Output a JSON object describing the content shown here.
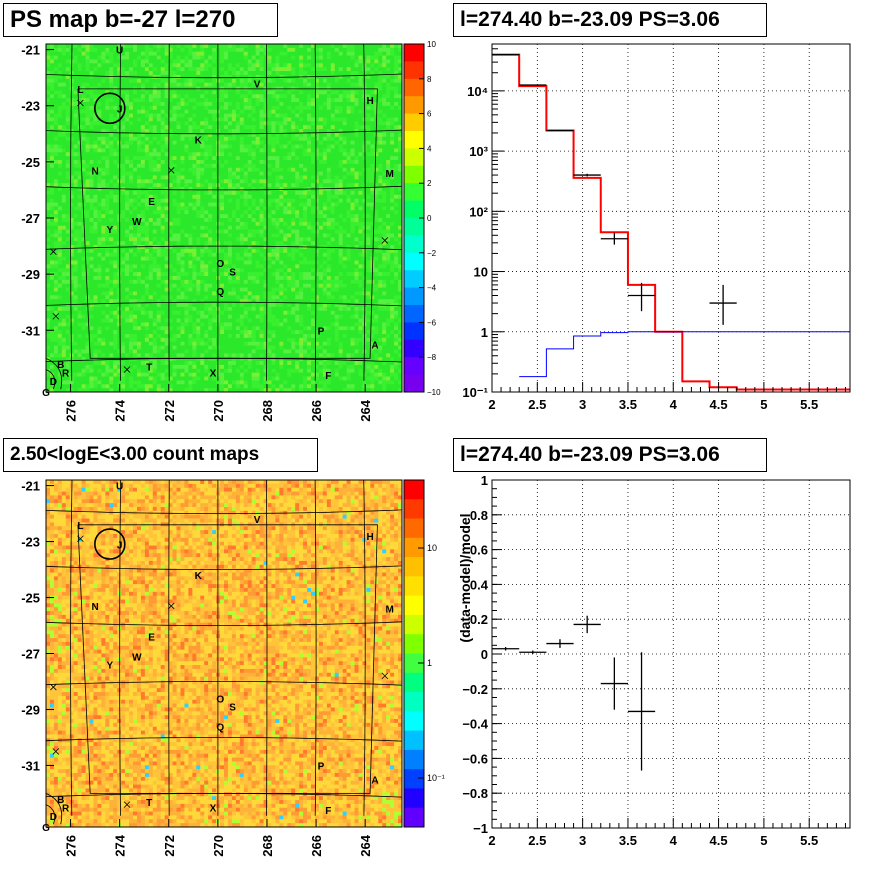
{
  "panels": {
    "tl": {
      "title": "PS map b=-27 l=270"
    },
    "tr": {
      "title": "l=274.40 b=-23.09 PS=3.06"
    },
    "bl": {
      "title": "2.50<logE<3.00 count maps"
    },
    "br": {
      "title": "l=274.40 b=-23.09 PS=3.06"
    }
  },
  "map_labels": [
    {
      "t": "U",
      "l": 274.0,
      "b": -21.0
    },
    {
      "t": "L",
      "l": 275.6,
      "b": -22.4
    },
    {
      "t": "V",
      "l": 268.4,
      "b": -22.2
    },
    {
      "t": "H",
      "l": 263.8,
      "b": -22.8
    },
    {
      "t": "J",
      "l": 274.0,
      "b": -23.1
    },
    {
      "t": "K",
      "l": 270.8,
      "b": -24.2
    },
    {
      "t": "N",
      "l": 275.0,
      "b": -25.3
    },
    {
      "t": "M",
      "l": 263.0,
      "b": -25.4
    },
    {
      "t": "E",
      "l": 272.7,
      "b": -26.4
    },
    {
      "t": "W",
      "l": 273.3,
      "b": -27.1
    },
    {
      "t": "Y",
      "l": 274.4,
      "b": -27.4
    },
    {
      "t": "O",
      "l": 269.9,
      "b": -28.6
    },
    {
      "t": "S",
      "l": 269.4,
      "b": -28.9
    },
    {
      "t": "Q",
      "l": 269.9,
      "b": -29.6
    },
    {
      "t": "P",
      "l": 265.8,
      "b": -31.0
    },
    {
      "t": "A",
      "l": 263.6,
      "b": -31.5
    },
    {
      "t": "T",
      "l": 272.8,
      "b": -32.3
    },
    {
      "t": "X",
      "l": 270.2,
      "b": -32.5
    },
    {
      "t": "F",
      "l": 265.5,
      "b": -32.6
    },
    {
      "t": "R",
      "l": 276.2,
      "b": -32.5
    },
    {
      "t": "B",
      "l": 276.4,
      "b": -32.2
    },
    {
      "t": "D",
      "l": 276.7,
      "b": -32.8
    },
    {
      "t": "G",
      "l": 277.0,
      "b": -33.2
    }
  ],
  "map_crosses": [
    {
      "l": 275.6,
      "b": -22.9
    },
    {
      "l": 271.9,
      "b": -25.3
    },
    {
      "l": 276.7,
      "b": -28.2
    },
    {
      "l": 276.6,
      "b": -30.5
    },
    {
      "l": 273.7,
      "b": -32.4
    },
    {
      "l": 263.2,
      "b": -27.8
    }
  ],
  "chart_data": [
    {
      "type": "heatmap",
      "title": "PS map b=-27 l=270",
      "xlabel": "",
      "ylabel": "",
      "x_ticks": [
        "276",
        "274",
        "272",
        "270",
        "268",
        "266",
        "264"
      ],
      "y_ticks": [
        "-21",
        "-23",
        "-25",
        "-27",
        "-29",
        "-31"
      ],
      "xlim": [
        277.0,
        262.5
      ],
      "ylim": [
        -33.2,
        -20.8
      ],
      "color_scale": {
        "min": -10,
        "max": 10,
        "ticks": [
          "10",
          "8",
          "6",
          "4",
          "2",
          "0",
          "−2",
          "−4",
          "−6",
          "−8",
          "−10"
        ]
      },
      "source": {
        "l": 274.4,
        "b": -23.09
      }
    },
    {
      "type": "line",
      "title": "l=274.40 b=-23.09 PS=3.06",
      "x_ticks": [
        "2",
        "2.5",
        "3",
        "3.5",
        "4",
        "4.5",
        "5",
        "5.5"
      ],
      "y_ticks": [
        "10⁻¹",
        "1",
        "10",
        "10²",
        "10³",
        "10⁴"
      ],
      "xlim": [
        2,
        5.95
      ],
      "ylim": [
        0.1,
        60000
      ],
      "yscale": "log",
      "grid": true,
      "series": [
        {
          "color": "#ff0000",
          "edges": [
            2,
            2.3,
            2.6,
            2.9,
            3.2,
            3.5,
            3.8,
            4.1,
            4.4,
            4.7,
            5.95
          ],
          "values": [
            40000,
            12000,
            2200,
            360,
            45,
            6,
            1,
            0.15,
            0.12,
            0.11
          ]
        },
        {
          "color": "#0000ff",
          "edges": [
            2.3,
            2.6,
            2.9,
            3.2,
            3.5,
            3.8,
            4.1,
            5.95
          ],
          "values": [
            0.18,
            0.52,
            0.85,
            0.97,
            1,
            1,
            1
          ]
        }
      ],
      "points": [
        {
          "x": 2.15,
          "dx": 0.15,
          "y": 40000,
          "lo": 40000,
          "hi": 40000
        },
        {
          "x": 2.45,
          "dx": 0.15,
          "y": 12500,
          "lo": 12500,
          "hi": 12500
        },
        {
          "x": 2.75,
          "dx": 0.15,
          "y": 2200,
          "lo": 2200,
          "hi": 2200
        },
        {
          "x": 3.05,
          "dx": 0.15,
          "y": 400,
          "lo": 380,
          "hi": 420
        },
        {
          "x": 3.35,
          "dx": 0.15,
          "y": 35,
          "lo": 28,
          "hi": 44
        },
        {
          "x": 3.65,
          "dx": 0.15,
          "y": 4,
          "lo": 2.2,
          "hi": 6.5
        },
        {
          "x": 4.55,
          "dx": 0.15,
          "y": 3,
          "lo": 1.3,
          "hi": 6
        }
      ]
    },
    {
      "type": "heatmap",
      "title": "2.50<logE<3.00 count maps",
      "x_ticks": [
        "276",
        "274",
        "272",
        "270",
        "268",
        "266",
        "264"
      ],
      "y_ticks": [
        "-21",
        "-23",
        "-25",
        "-27",
        "-29",
        "-31"
      ],
      "xlim": [
        277.0,
        262.5
      ],
      "ylim": [
        -33.2,
        -20.8
      ],
      "color_scale": {
        "scale": "log",
        "ticks": [
          "10",
          "1",
          "10⁻¹"
        ]
      }
    },
    {
      "type": "scatter",
      "title": "l=274.40 b=-23.09 PS=3.06",
      "ylabel": "(data-model)/model",
      "x_ticks": [
        "2",
        "2.5",
        "3",
        "3.5",
        "4",
        "4.5",
        "5",
        "5.5"
      ],
      "y_ticks": [
        "1",
        "0.8",
        "0.6",
        "0.4",
        "0.2",
        "0",
        "−0.2",
        "−0.4",
        "−0.6",
        "−0.8",
        "−1"
      ],
      "xlim": [
        2,
        5.95
      ],
      "ylim": [
        -1,
        1
      ],
      "grid": true,
      "points": [
        {
          "x": 2.15,
          "dx": 0.15,
          "y": 0.03,
          "err": 0.01
        },
        {
          "x": 2.45,
          "dx": 0.15,
          "y": 0.01,
          "err": 0.01
        },
        {
          "x": 2.75,
          "dx": 0.15,
          "y": 0.06,
          "err": 0.025
        },
        {
          "x": 3.05,
          "dx": 0.15,
          "y": 0.17,
          "err": 0.05
        },
        {
          "x": 3.35,
          "dx": 0.15,
          "y": -0.17,
          "err": 0.15
        },
        {
          "x": 3.65,
          "dx": 0.15,
          "y": -0.33,
          "err": 0.34
        }
      ]
    }
  ],
  "colors": {
    "axis": "#000000",
    "grid": "#000000",
    "model": "#ff0000",
    "background_model": "#0000ff",
    "data": "#000000"
  }
}
